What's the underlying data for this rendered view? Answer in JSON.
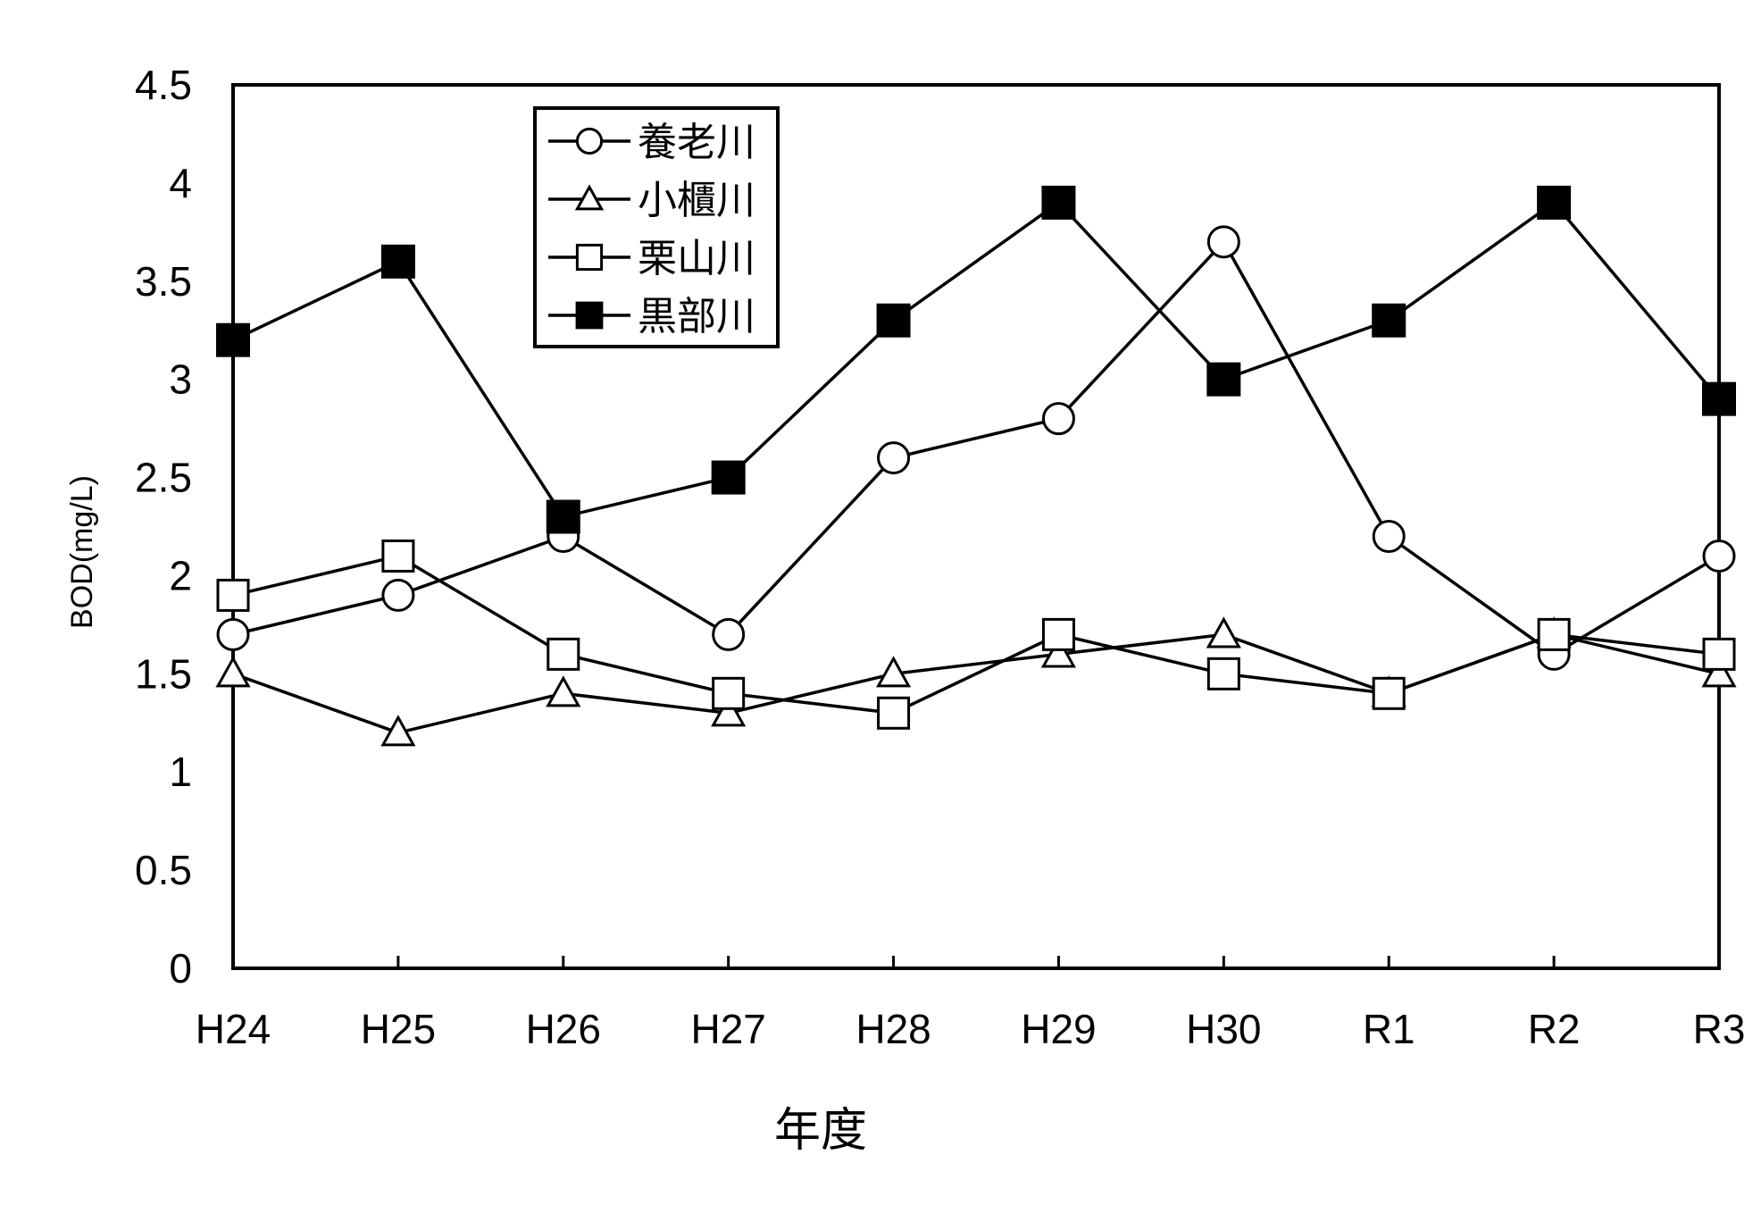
{
  "chart_data": {
    "type": "line",
    "categories": [
      "H24",
      "H25",
      "H26",
      "H27",
      "H28",
      "H29",
      "H30",
      "R1",
      "R2",
      "R3"
    ],
    "xlabel": "年度",
    "ylabel": "BOD(mg/L)",
    "ylim": [
      0,
      4.5
    ],
    "yticks": [
      "0",
      "0.5",
      "1",
      "1.5",
      "2",
      "2.5",
      "3",
      "3.5",
      "4",
      "4.5"
    ],
    "grid": false,
    "legend_position": "top-left",
    "series": [
      {
        "name": "養老川",
        "marker": "circle-open",
        "values": [
          1.7,
          1.9,
          2.2,
          1.7,
          2.6,
          2.8,
          3.7,
          2.2,
          1.6,
          2.1
        ]
      },
      {
        "name": "小櫃川",
        "marker": "triangle-open",
        "values": [
          1.5,
          1.2,
          1.4,
          1.3,
          1.5,
          1.6,
          1.7,
          1.4,
          1.7,
          1.5
        ]
      },
      {
        "name": "栗山川",
        "marker": "square-open",
        "values": [
          1.9,
          2.1,
          1.6,
          1.4,
          1.3,
          1.7,
          1.5,
          1.4,
          1.7,
          1.6
        ]
      },
      {
        "name": "黒部川",
        "marker": "square-filled",
        "values": [
          3.2,
          3.6,
          2.3,
          2.5,
          3.3,
          3.9,
          3.0,
          3.3,
          3.9,
          2.9
        ]
      }
    ]
  }
}
